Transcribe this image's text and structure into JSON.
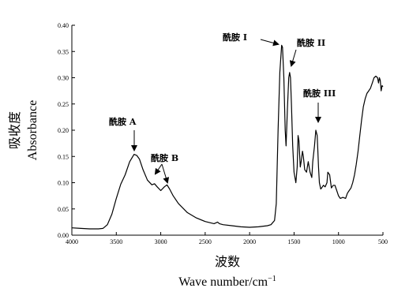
{
  "chart_data": {
    "type": "line",
    "xlabel_cn": "波数",
    "xlabel_en": "Wave  number/cm",
    "xlabel_sup": "−1",
    "ylabel_cn": "吸收度",
    "ylabel_en": "Absorbance",
    "xlim": [
      4000,
      500
    ],
    "ylim": [
      0,
      0.4
    ],
    "xticks": [
      "4000",
      "3500",
      "3000",
      "2500",
      "2000",
      "1500",
      "1000",
      "500"
    ],
    "xtick_values": [
      4000,
      3500,
      3000,
      2500,
      2000,
      1500,
      1000,
      500
    ],
    "yticks": [
      "0.00",
      "0.05",
      "0.10",
      "0.15",
      "0.20",
      "0.25",
      "0.30",
      "0.35",
      "0.40"
    ],
    "ytick_values": [
      0,
      0.05,
      0.1,
      0.15,
      0.2,
      0.25,
      0.3,
      0.35,
      0.4
    ],
    "grid": false,
    "series": [
      {
        "x": [
          4000,
          3900,
          3800,
          3700,
          3650,
          3600,
          3550,
          3500,
          3450,
          3400,
          3350,
          3300,
          3270,
          3240,
          3200,
          3150,
          3100,
          3070,
          3040,
          3000,
          2960,
          2930,
          2900,
          2860,
          2800,
          2700,
          2600,
          2500,
          2400,
          2360,
          2340,
          2300,
          2200,
          2100,
          2000,
          1900,
          1800,
          1760,
          1720,
          1700,
          1680,
          1660,
          1640,
          1630,
          1615,
          1600,
          1590,
          1575,
          1560,
          1550,
          1540,
          1530,
          1515,
          1500,
          1480,
          1465,
          1455,
          1445,
          1430,
          1420,
          1405,
          1395,
          1380,
          1360,
          1340,
          1320,
          1300,
          1290,
          1270,
          1255,
          1240,
          1235,
          1225,
          1215,
          1200,
          1190,
          1170,
          1150,
          1130,
          1120,
          1100,
          1080,
          1060,
          1040,
          1020,
          1000,
          980,
          950,
          920,
          900,
          880,
          860,
          840,
          820,
          800,
          780,
          760,
          740,
          720,
          700,
          680,
          660,
          640,
          620,
          600,
          580,
          560,
          550,
          540,
          530,
          520,
          510,
          500
        ],
        "values": [
          0.014,
          0.013,
          0.012,
          0.012,
          0.013,
          0.02,
          0.04,
          0.07,
          0.097,
          0.115,
          0.14,
          0.154,
          0.152,
          0.145,
          0.125,
          0.105,
          0.096,
          0.098,
          0.092,
          0.085,
          0.092,
          0.096,
          0.088,
          0.075,
          0.06,
          0.043,
          0.033,
          0.026,
          0.022,
          0.025,
          0.022,
          0.02,
          0.018,
          0.016,
          0.015,
          0.016,
          0.018,
          0.02,
          0.028,
          0.06,
          0.2,
          0.31,
          0.362,
          0.358,
          0.3,
          0.2,
          0.17,
          0.24,
          0.3,
          0.31,
          0.3,
          0.25,
          0.17,
          0.12,
          0.1,
          0.13,
          0.19,
          0.18,
          0.13,
          0.14,
          0.16,
          0.15,
          0.125,
          0.12,
          0.14,
          0.12,
          0.11,
          0.14,
          0.17,
          0.2,
          0.19,
          0.17,
          0.13,
          0.1,
          0.088,
          0.09,
          0.095,
          0.092,
          0.1,
          0.12,
          0.115,
          0.09,
          0.095,
          0.095,
          0.085,
          0.075,
          0.07,
          0.072,
          0.07,
          0.08,
          0.085,
          0.09,
          0.1,
          0.115,
          0.135,
          0.16,
          0.19,
          0.22,
          0.245,
          0.26,
          0.27,
          0.275,
          0.28,
          0.29,
          0.3,
          0.303,
          0.3,
          0.29,
          0.3,
          0.295,
          0.275,
          0.285,
          0.283
        ]
      }
    ],
    "annotations": [
      {
        "label": "酰胺 A",
        "x": 3270,
        "y": 0.154
      },
      {
        "label": "酰胺 B",
        "x": 2930,
        "y": 0.096
      },
      {
        "label": "酰胺 I",
        "x": 1640,
        "y": 0.362
      },
      {
        "label": "酰胺 II",
        "x": 1555,
        "y": 0.31
      },
      {
        "label": "酰胺 III",
        "x": 1235,
        "y": 0.2
      }
    ]
  }
}
